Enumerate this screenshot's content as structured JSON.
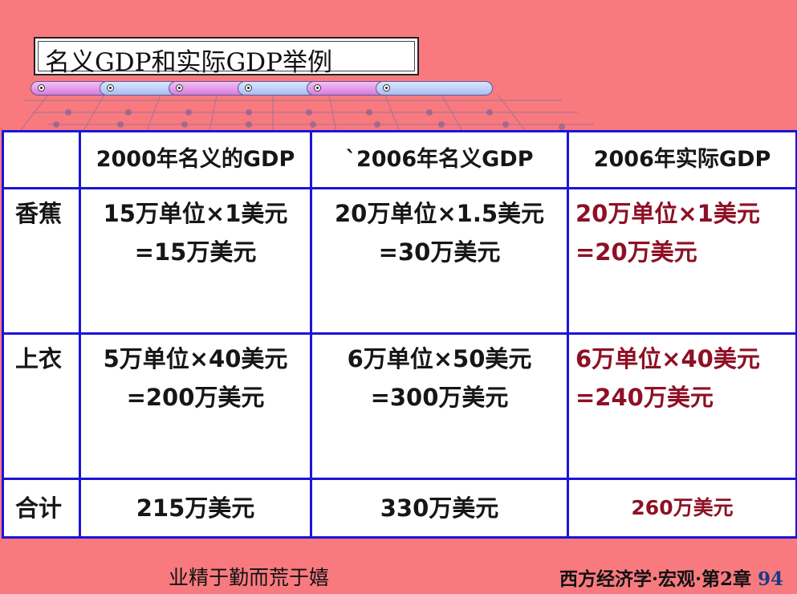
{
  "title": "名义GDP和实际GDP举例",
  "table": {
    "headers": [
      "",
      "2000年名义的GDP",
      "`2006年名义GDP",
      "2006年实际GDP"
    ],
    "rows": [
      {
        "label": "香蕉",
        "nominal_2000": [
          "15万单位×1美元",
          "=15万美元"
        ],
        "nominal_2006": [
          "20万单位×1.5美元",
          "=30万美元"
        ],
        "real_2006": [
          "20万单位×1美元",
          "=20万美元"
        ]
      },
      {
        "label": "上衣",
        "nominal_2000": [
          "5万单位×40美元",
          "=200万美元"
        ],
        "nominal_2006": [
          "6万单位×50美元",
          "=300万美元"
        ],
        "real_2006": [
          "6万单位×40美元",
          "=240万美元"
        ]
      },
      {
        "label": "合计",
        "nominal_2000": [
          "215万美元"
        ],
        "nominal_2006": [
          "330万美元"
        ],
        "real_2006": [
          "260万美元"
        ]
      }
    ]
  },
  "footer": {
    "motto": "业精于勤而荒于嬉",
    "course": "西方经济学·宏观·第2章",
    "page": "94"
  },
  "colors": {
    "background": "#f87a7f",
    "table_border": "#1c14d8",
    "real_text": "#8e1024"
  }
}
